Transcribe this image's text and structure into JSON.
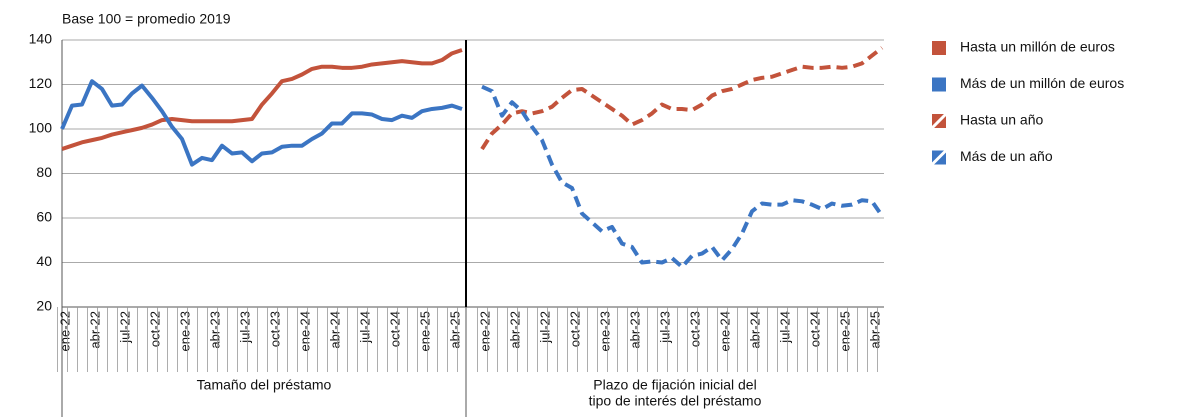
{
  "chart_data": {
    "type": "line",
    "title": "Base 100 = promedio 2019",
    "ylim": [
      20,
      140
    ],
    "yticks": [
      20,
      40,
      60,
      80,
      100,
      120,
      140
    ],
    "grid": true,
    "panels": [
      {
        "xlabel": [
          "Tamaño del préstamo"
        ],
        "categories": [
          "ene-22",
          null,
          null,
          "abr-22",
          null,
          null,
          "jul-22",
          null,
          null,
          "oct-22",
          null,
          null,
          "ene-23",
          null,
          null,
          "abr-23",
          null,
          null,
          "jul-23",
          null,
          null,
          "oct-23",
          null,
          null,
          "ene-24",
          null,
          null,
          "abr-24",
          null,
          null,
          "jul-24",
          null,
          null,
          "oct-24",
          null,
          null,
          "ene-25",
          null,
          null,
          "abr-25",
          null
        ],
        "series": [
          {
            "name": "Hasta un millón de euros",
            "color": "#c3533b",
            "dashed": false,
            "values": [
              91,
              92.5,
              94,
              95,
              96,
              97.5,
              98.5,
              99.5,
              100.5,
              102,
              104,
              104.5,
              104,
              103.5,
              103.5,
              103.5,
              103.5,
              103.5,
              104,
              104.5,
              111,
              116,
              121.5,
              122.5,
              124.5,
              127,
              128,
              128,
              127.5,
              127.5,
              128,
              129,
              129.5,
              130,
              130.5,
              130,
              129.5,
              129.5,
              131,
              134,
              135.5
            ]
          },
          {
            "name": "Más de un millón de euros",
            "color": "#3b75c3",
            "dashed": false,
            "values": [
              100,
              110.5,
              111,
              121.5,
              118,
              110.5,
              111,
              116,
              119.5,
              114,
              108,
              101,
              95.5,
              84,
              87,
              86,
              92.5,
              89,
              89.5,
              85.5,
              89,
              89.5,
              92,
              92.5,
              92.5,
              95.5,
              98,
              102.5,
              102.5,
              107,
              107,
              106.5,
              104.5,
              104,
              106,
              105,
              108,
              109,
              109.5,
              110.5,
              109
            ]
          }
        ]
      },
      {
        "xlabel": [
          "Plazo de fijación inicial del",
          "tipo de interés del préstamo"
        ],
        "categories": [
          "ene-22",
          null,
          null,
          "abr-22",
          null,
          null,
          "jul-22",
          null,
          null,
          "oct-22",
          null,
          null,
          "ene-23",
          null,
          null,
          "abr-23",
          null,
          null,
          "jul-23",
          null,
          null,
          "oct-23",
          null,
          null,
          "ene-24",
          null,
          null,
          "abr-24",
          null,
          null,
          "jul-24",
          null,
          null,
          "oct-24",
          null,
          null,
          "ene-25",
          null,
          null,
          "abr-25",
          null
        ],
        "series": [
          {
            "name": "Hasta un año",
            "color": "#c3533b",
            "dashed": true,
            "values": [
              91,
              98,
              102,
              107,
              108,
              107,
              108,
              110,
              114,
              117.5,
              118,
              115,
              112,
              109,
              106,
              102,
              104,
              107,
              111,
              109,
              109,
              108.5,
              111,
              115,
              117,
              118,
              120,
              122,
              123,
              123.5,
              125,
              126.5,
              128,
              127.5,
              127.5,
              128,
              127.5,
              128,
              129.5,
              133,
              136.5
            ]
          },
          {
            "name": "Más de un año",
            "color": "#3b75c3",
            "dashed": true,
            "values": [
              119,
              117,
              106,
              112,
              108,
              101,
              95,
              84,
              76,
              73.5,
              62,
              58,
              54,
              56,
              48.5,
              47,
              40,
              40.5,
              40,
              42,
              38,
              43,
              44,
              47,
              41,
              46,
              53,
              63,
              66.5,
              66,
              66,
              68,
              67.5,
              66,
              64,
              66.5,
              65.5,
              66,
              68,
              67.5,
              61
            ]
          }
        ]
      }
    ]
  }
}
